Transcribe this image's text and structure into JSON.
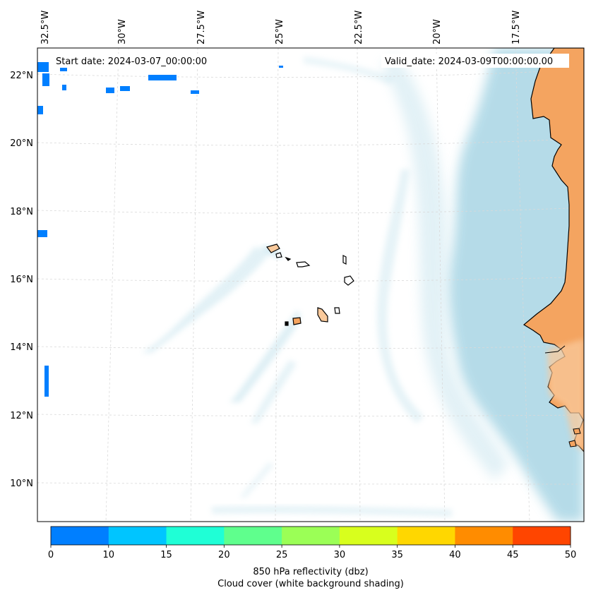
{
  "map": {
    "start_label": "Start date: 2024-03-07_00:00:00",
    "valid_label": "Valid_date: 2024-03-09T00:00:00.00",
    "lon_labels": [
      "32.5°W",
      "30°W",
      "27.5°W",
      "25°W",
      "22.5°W",
      "20°W",
      "17.5°W"
    ],
    "lat_labels": [
      "22°N",
      "20°N",
      "18°N",
      "16°N",
      "14°N",
      "12°N",
      "10°N"
    ],
    "colors": {
      "land": "#f4a460",
      "land_light": "#f9c99b",
      "sea": "#ffffff",
      "cloud": "#add8e6",
      "coast": "#000000",
      "grid": "#d9d9d9"
    }
  },
  "colorbar": {
    "ticks": [
      "0",
      "10",
      "15",
      "20",
      "25",
      "30",
      "35",
      "40",
      "45",
      "50"
    ],
    "colors": [
      "#007fff",
      "#00c5ff",
      "#1fffd6",
      "#5fff8d",
      "#9bff56",
      "#d8ff1d",
      "#ffd700",
      "#ff8c00",
      "#ff4500"
    ],
    "label_line1": "850 hPa reflectivity (dbz)",
    "label_line2": "Cloud cover (white background shading)"
  }
}
